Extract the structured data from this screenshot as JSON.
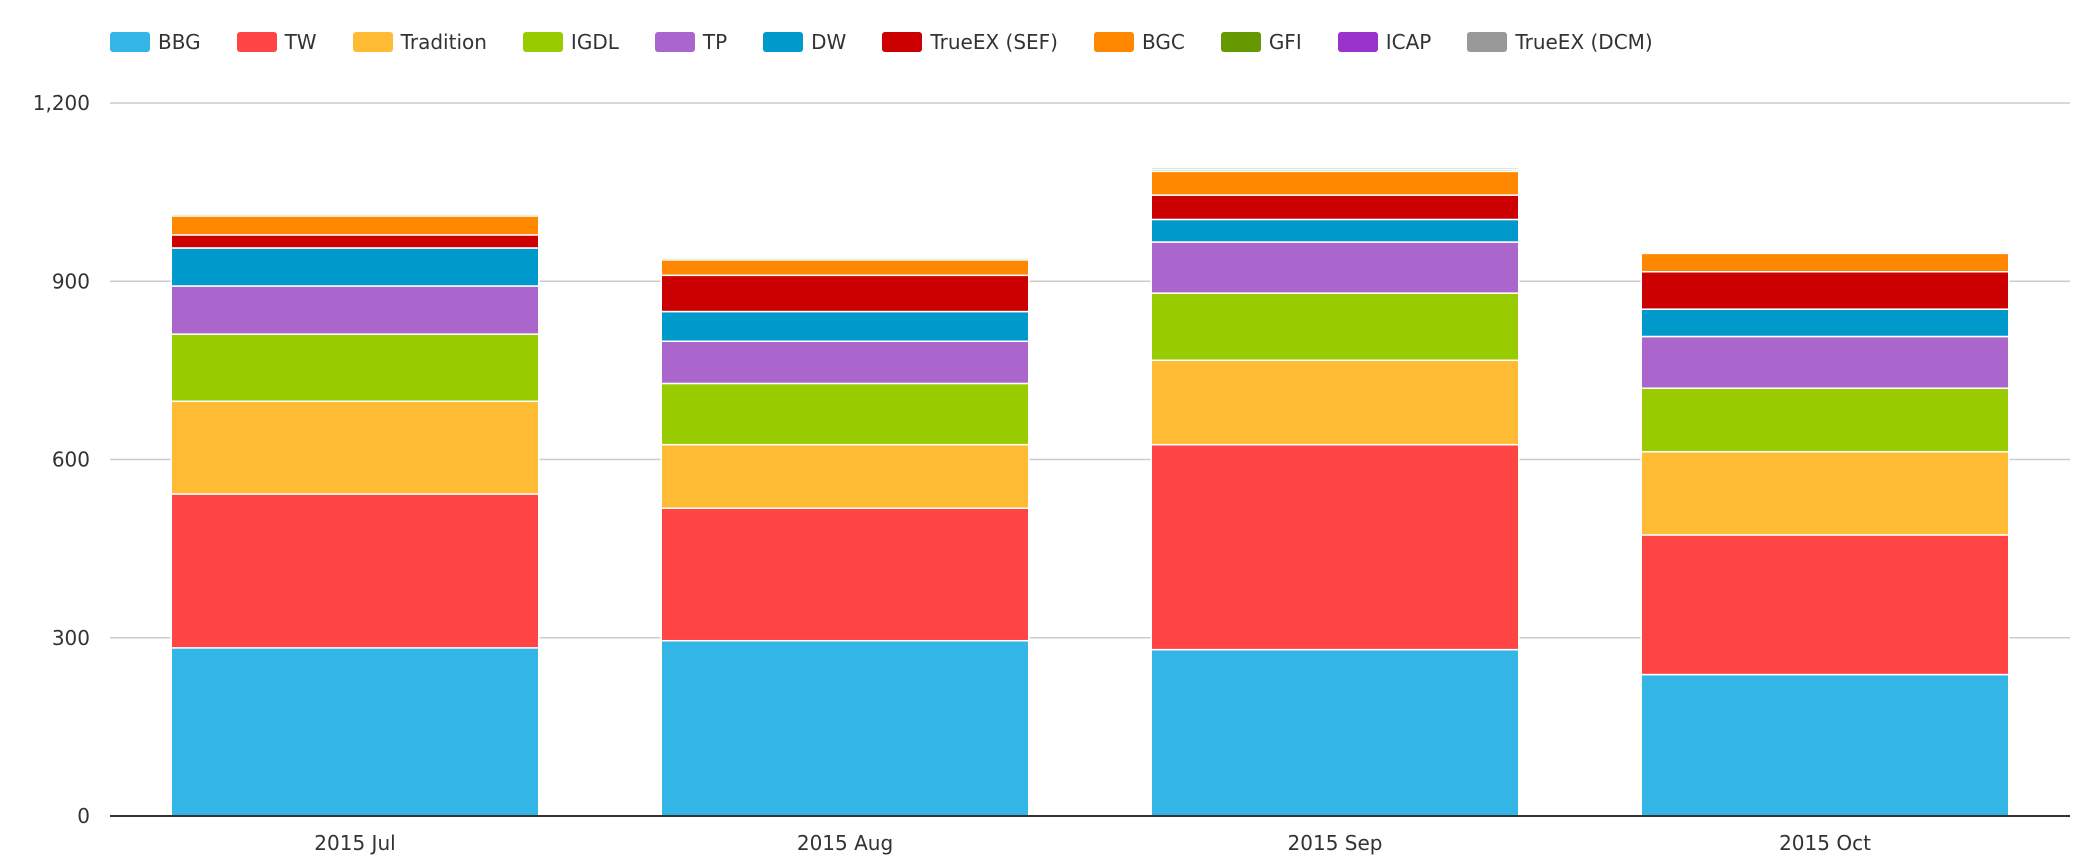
{
  "chart_data": {
    "type": "bar",
    "stacked": true,
    "categories": [
      "2015 Jul",
      "2015 Aug",
      "2015 Sep",
      "2015 Oct"
    ],
    "ylim": [
      0,
      1200
    ],
    "yticks": [
      0,
      300,
      600,
      900,
      1200
    ],
    "ytick_labels": [
      "0",
      "300",
      "600",
      "900",
      "1,200"
    ],
    "grid": true,
    "legend_position": "top-left",
    "series": [
      {
        "name": "BBG",
        "color": "#33B5E5",
        "values": [
          283,
          295,
          280,
          238
        ]
      },
      {
        "name": "TW",
        "color": "#FF4444",
        "values": [
          259,
          223,
          345,
          235
        ]
      },
      {
        "name": "Tradition",
        "color": "#FFBB33",
        "values": [
          156,
          107,
          142,
          140
        ]
      },
      {
        "name": "IGDL",
        "color": "#99CC00",
        "values": [
          113,
          103,
          113,
          107
        ]
      },
      {
        "name": "TP",
        "color": "#AA66CC",
        "values": [
          81,
          71,
          86,
          87
        ]
      },
      {
        "name": "DW",
        "color": "#0099CC",
        "values": [
          64,
          50,
          38,
          46
        ]
      },
      {
        "name": "TrueEX (SEF)",
        "color": "#CC0000",
        "values": [
          22,
          61,
          41,
          63
        ]
      },
      {
        "name": "BGC",
        "color": "#FF8800",
        "values": [
          32,
          26,
          40,
          31
        ]
      },
      {
        "name": "GFI",
        "color": "#669900",
        "values": [
          3,
          3,
          3,
          0
        ]
      },
      {
        "name": "ICAP",
        "color": "#9933CC",
        "values": [
          0,
          0,
          0,
          0
        ]
      },
      {
        "name": "TrueEX (DCM)",
        "color": "#999999",
        "values": [
          2,
          1,
          3,
          1
        ]
      }
    ]
  }
}
